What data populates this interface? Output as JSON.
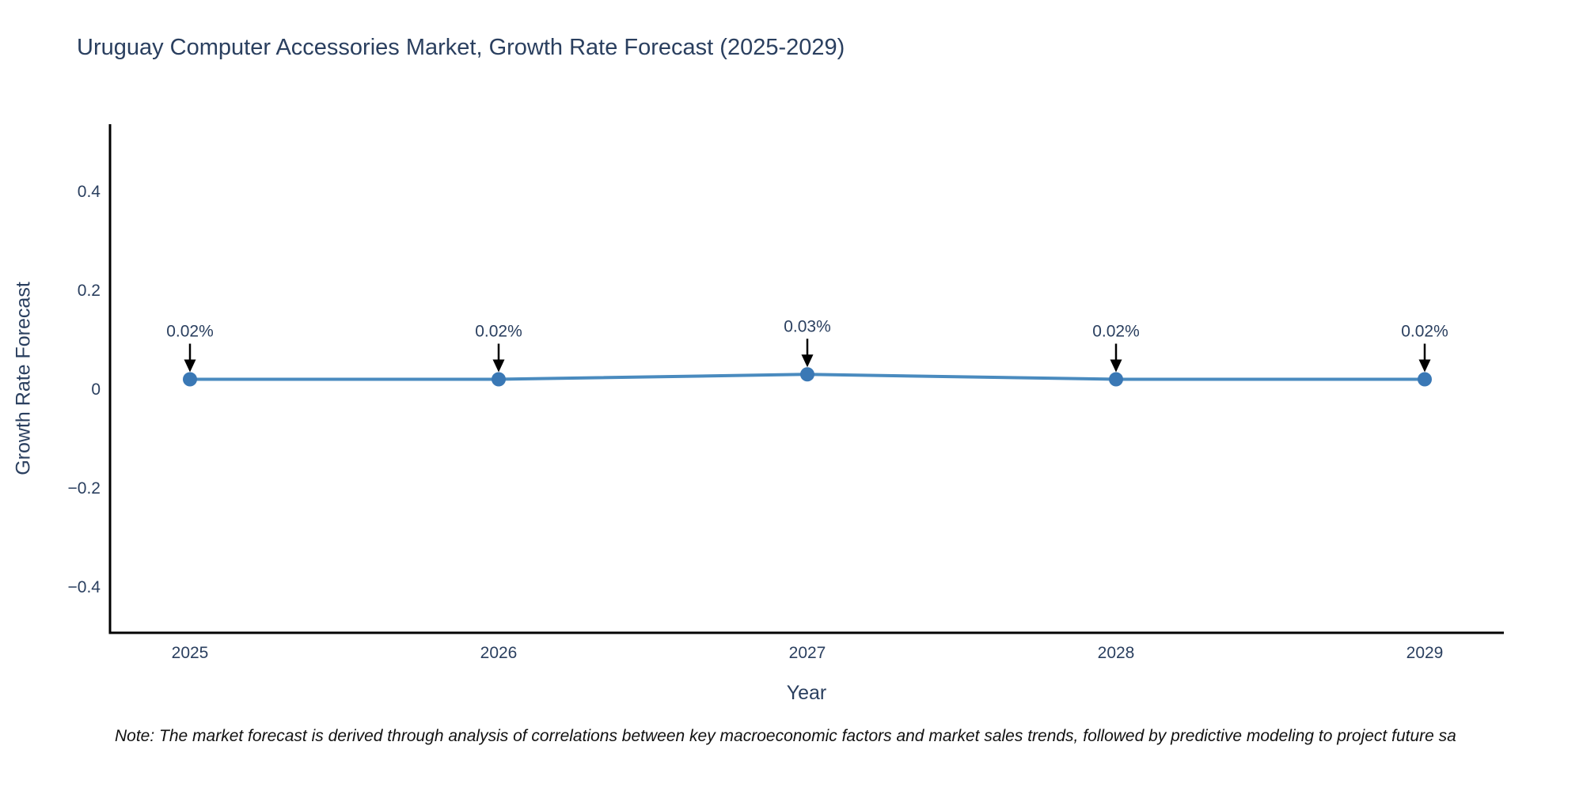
{
  "chart_data": {
    "type": "line",
    "title": "Uruguay Computer Accessories Market, Growth Rate Forecast (2025-2029)",
    "xlabel": "Year",
    "ylabel": "Growth Rate Forecast",
    "categories": [
      "2025",
      "2026",
      "2027",
      "2028",
      "2029"
    ],
    "values": [
      0.02,
      0.02,
      0.03,
      0.02,
      0.02
    ],
    "point_labels": [
      "0.02%",
      "0.02%",
      "0.03%",
      "0.02%",
      "0.02%"
    ],
    "series_name": "Growth Rate Forecast",
    "yticks": [
      0.4,
      0.2,
      0,
      -0.2,
      -0.4
    ],
    "ytick_labels": [
      "0.4",
      "0.2",
      "0",
      "−0.2",
      "−0.4"
    ],
    "ylim": [
      -0.49,
      0.54
    ],
    "grid": false,
    "legend_position": "none",
    "annotation_arrow": "down-arrow-icon",
    "colors": {
      "line": "#4a8bbf",
      "marker": "#3a78b5",
      "axis": "#000000",
      "text": "#2a3f5f",
      "annotation_arrow": "#000000",
      "note_text": "#111111",
      "background": "#ffffff"
    },
    "note": "Note: The market forecast is derived through analysis of correlations between key macroeconomic factors and market sales trends, followed by predictive modeling to project future sa"
  }
}
